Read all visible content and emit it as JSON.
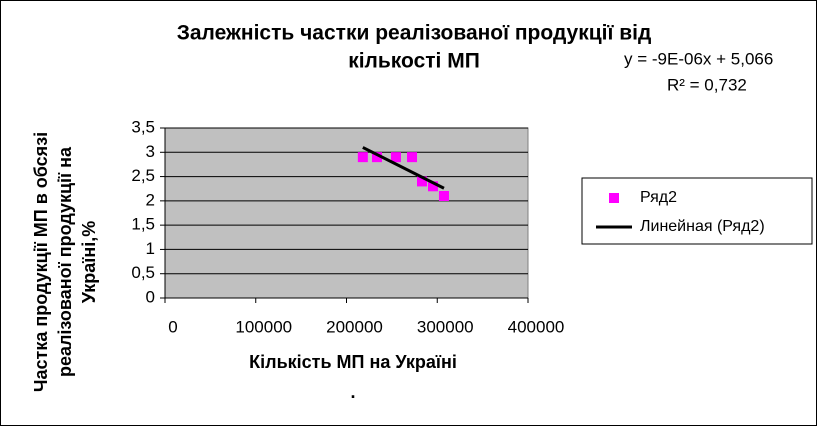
{
  "chart_data": {
    "type": "scatter",
    "title": [
      "Залежність частки реалізованої продукції від",
      "кількості МП"
    ],
    "x_label": "Кількість МП на Україні",
    "x_label_note": ".",
    "y_label": [
      "Частка продукції МП в обсязі",
      "реалізованої продукції на",
      "Україні,%"
    ],
    "equation": "y = -9E-06x + 5,066",
    "r_squared": "R² = 0,732",
    "xlim": [
      0,
      400000
    ],
    "xticks": [
      0,
      100000,
      200000,
      300000,
      400000
    ],
    "ylim": [
      0,
      3.5
    ],
    "yticks": [
      0,
      {
        "value": 0.5,
        "label": "0,5"
      },
      1,
      {
        "value": 1.5,
        "label": "1,5"
      },
      2,
      {
        "value": 2.5,
        "label": "2,5"
      },
      3,
      {
        "value": 3.5,
        "label": "3,5"
      }
    ],
    "grid": true,
    "plot_background": "#c0c0c0",
    "legend_position": "right",
    "series": [
      {
        "name": "Ряд2",
        "color": "#ff00ff",
        "x": [
          218000,
          233600,
          254500,
          272200,
          283200,
          295300,
          307400
        ],
        "values": [
          2.9,
          2.9,
          2.9,
          2.9,
          2.4,
          2.3,
          2.1
        ]
      }
    ],
    "trendline": {
      "name": "Линейная (Ряд2)",
      "color": "#000000",
      "x": [
        218000,
        307400
      ],
      "values": [
        3.1,
        2.26
      ]
    }
  }
}
